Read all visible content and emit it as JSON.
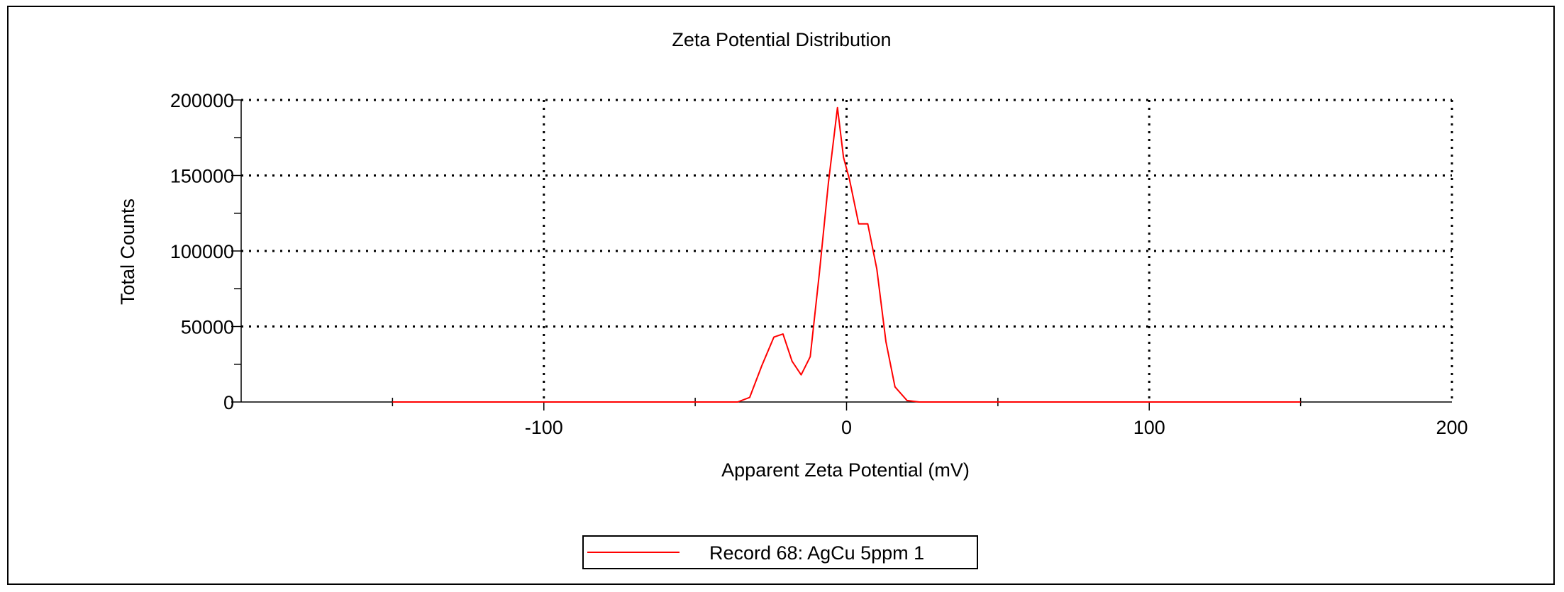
{
  "chart_data": {
    "type": "line",
    "title": "Zeta Potential Distribution",
    "xlabel": "Apparent Zeta Potential (mV)",
    "ylabel": "Total Counts",
    "xlim": [
      -200,
      200
    ],
    "ylim": [
      0,
      200000
    ],
    "x_ticks": [
      -100,
      0,
      100,
      200
    ],
    "x_tick_labels": [
      "-100",
      "0",
      "100",
      "200"
    ],
    "y_ticks": [
      0,
      50000,
      100000,
      150000,
      200000
    ],
    "y_tick_labels": [
      "0",
      "50000",
      "100000",
      "150000",
      "200000"
    ],
    "grid": true,
    "legend_position": "bottom-center",
    "series": [
      {
        "name": "Record 68: AgCu 5ppm 1",
        "color": "#ff0000",
        "x": [
          -150,
          -140,
          -120,
          -100,
          -80,
          -60,
          -50,
          -40,
          -36,
          -32,
          -28,
          -24,
          -21,
          -18,
          -15,
          -12,
          -9,
          -6,
          -3,
          -1,
          1,
          4,
          7,
          10,
          13,
          16,
          20,
          24,
          30,
          40,
          60,
          80,
          100,
          120,
          140,
          150
        ],
        "y": [
          0,
          0,
          0,
          0,
          0,
          0,
          0,
          0,
          0,
          3000,
          24000,
          43000,
          45000,
          27000,
          18000,
          30000,
          85000,
          145000,
          195000,
          162000,
          147000,
          118000,
          118000,
          88000,
          40000,
          10000,
          1000,
          0,
          0,
          0,
          0,
          0,
          0,
          0,
          0,
          0
        ]
      }
    ]
  }
}
